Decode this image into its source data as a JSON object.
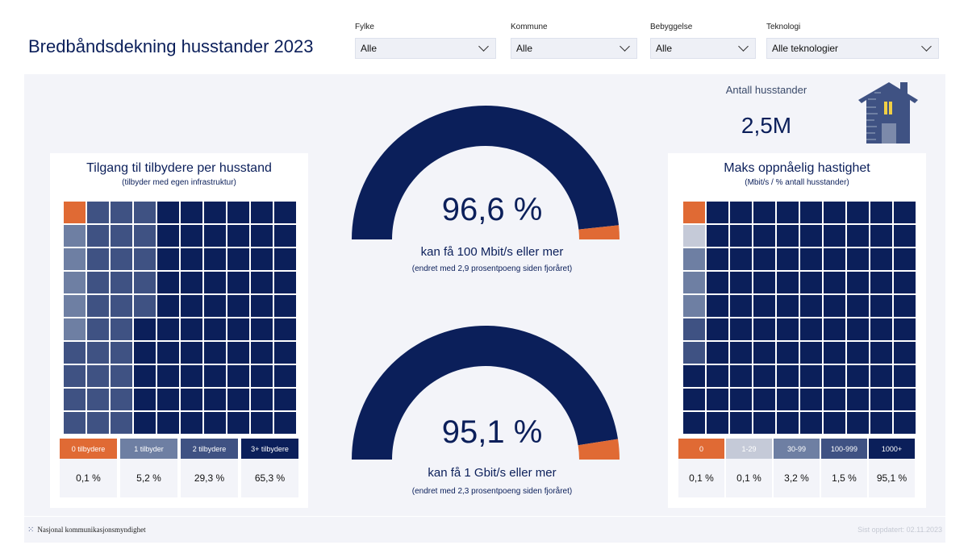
{
  "header": {
    "title": "Bredbåndsdekning husstander 2023"
  },
  "filters": [
    {
      "label": "Fylke",
      "value": "Alle"
    },
    {
      "label": "Kommune",
      "value": "Alle"
    },
    {
      "label": "Bebyggelse",
      "value": "Alle"
    },
    {
      "label": "Teknologi",
      "value": "Alle teknologier"
    }
  ],
  "households": {
    "label": "Antall husstander",
    "value": "2,5M",
    "icon": "house-icon"
  },
  "colors": {
    "orange": "#e06a34",
    "pale": "#c5cad8",
    "light": "#6e7fa3",
    "mid": "#3f5283",
    "dark": "#0b1f5a"
  },
  "providers": {
    "title": "Tilgang til tilbydere per husstand",
    "subtitle": "(tilbyder med egen infrastruktur)",
    "categories": [
      {
        "label": "0 tilbydere",
        "value": "0,1 %",
        "color": "#e06a34"
      },
      {
        "label": "1 tilbyder",
        "value": "5,2 %",
        "color": "#6e7fa3"
      },
      {
        "label": "2 tilbydere",
        "value": "29,3 %",
        "color": "#3f5283"
      },
      {
        "label": "3+ tilbydere",
        "value": "65,3 %",
        "color": "#0b1f5a"
      }
    ],
    "waffle_columns": [
      [
        0,
        1,
        1,
        1,
        1,
        1,
        2,
        2,
        2,
        2
      ],
      [
        2,
        2,
        2,
        2,
        2,
        2,
        2,
        2,
        2,
        2
      ],
      [
        2,
        2,
        2,
        2,
        2,
        2,
        2,
        2,
        2,
        2
      ],
      [
        2,
        2,
        2,
        2,
        2,
        3,
        3,
        3,
        3,
        3
      ],
      [
        3,
        3,
        3,
        3,
        3,
        3,
        3,
        3,
        3,
        3
      ],
      [
        3,
        3,
        3,
        3,
        3,
        3,
        3,
        3,
        3,
        3
      ],
      [
        3,
        3,
        3,
        3,
        3,
        3,
        3,
        3,
        3,
        3
      ],
      [
        3,
        3,
        3,
        3,
        3,
        3,
        3,
        3,
        3,
        3
      ],
      [
        3,
        3,
        3,
        3,
        3,
        3,
        3,
        3,
        3,
        3
      ],
      [
        3,
        3,
        3,
        3,
        3,
        3,
        3,
        3,
        3,
        3
      ]
    ]
  },
  "speed": {
    "title": "Maks oppnåelig hastighet",
    "subtitle": "(Mbit/s / % antall husstander)",
    "categories": [
      {
        "label": "0",
        "value": "0,1 %",
        "color": "#e06a34"
      },
      {
        "label": "1-29",
        "value": "0,1 %",
        "color": "#c5cad8"
      },
      {
        "label": "30-99",
        "value": "3,2 %",
        "color": "#6e7fa3"
      },
      {
        "label": "100-999",
        "value": "1,5 %",
        "color": "#3f5283"
      },
      {
        "label": "1000+",
        "value": "95,1 %",
        "color": "#0b1f5a"
      }
    ],
    "waffle_columns": [
      [
        0,
        1,
        2,
        2,
        2,
        3,
        3,
        4,
        4,
        4
      ],
      [
        4,
        4,
        4,
        4,
        4,
        4,
        4,
        4,
        4,
        4
      ],
      [
        4,
        4,
        4,
        4,
        4,
        4,
        4,
        4,
        4,
        4
      ],
      [
        4,
        4,
        4,
        4,
        4,
        4,
        4,
        4,
        4,
        4
      ],
      [
        4,
        4,
        4,
        4,
        4,
        4,
        4,
        4,
        4,
        4
      ],
      [
        4,
        4,
        4,
        4,
        4,
        4,
        4,
        4,
        4,
        4
      ],
      [
        4,
        4,
        4,
        4,
        4,
        4,
        4,
        4,
        4,
        4
      ],
      [
        4,
        4,
        4,
        4,
        4,
        4,
        4,
        4,
        4,
        4
      ],
      [
        4,
        4,
        4,
        4,
        4,
        4,
        4,
        4,
        4,
        4
      ],
      [
        4,
        4,
        4,
        4,
        4,
        4,
        4,
        4,
        4,
        4
      ]
    ]
  },
  "gauges": [
    {
      "percent": 96.6,
      "value_text": "96,6 %",
      "caption": "kan få 100 Mbit/s eller mer",
      "change": "(endret med 2,9 prosentpoeng siden fjoråret)"
    },
    {
      "percent": 95.1,
      "value_text": "95,1 %",
      "caption": "kan få 1 Gbit/s eller mer",
      "change": "(endret med 2,3 prosentpoeng siden fjoråret)"
    }
  ],
  "footer": {
    "org": "Nasjonal kommunikasjonsmyndighet",
    "updated": "Sist oppdatert: 02.11.2023"
  }
}
